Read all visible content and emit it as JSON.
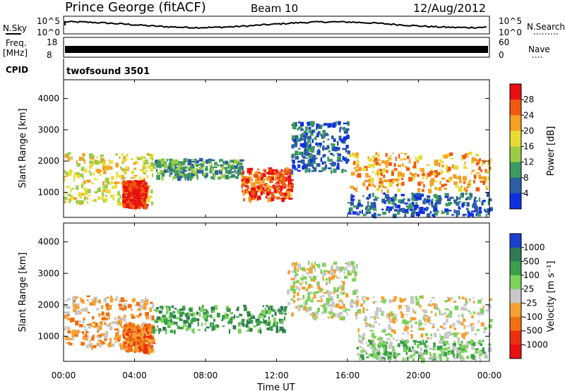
{
  "header": {
    "station": "Prince George (fitACF)",
    "beam": "Beam 10",
    "date": "12/Aug/2012"
  },
  "top_panels": {
    "nsky_label": "N.Sky",
    "nsky_ticks": [
      "10^5",
      "10^0"
    ],
    "nsearch_label": "N.Search",
    "nsearch_ticks": [
      "10^5",
      "10^0"
    ],
    "freq_label": "Freq.",
    "freq_unit": "[MHz]",
    "freq_ticks": [
      "18",
      "8"
    ],
    "nave_label": "Nave",
    "nave_ticks": [
      "60",
      "0"
    ],
    "cpid_label": "CPID",
    "cpid_value": "twofsound 3501"
  },
  "chart_data": [
    {
      "type": "heatmap",
      "name": "power",
      "ylabel": "Slant Range [km]",
      "yticks": [
        "4000",
        "3000",
        "2000",
        "1000"
      ],
      "ylim": [
        200,
        4600
      ],
      "xlim": [
        0,
        24
      ],
      "colorbar": {
        "label": "Power [dB]",
        "ticks": [
          "28",
          "24",
          "20",
          "16",
          "12",
          "8",
          "4"
        ],
        "colors": [
          "#e81010",
          "#f05a10",
          "#f5a022",
          "#e8dc34",
          "#9ccc45",
          "#3c9a60",
          "#2d5e9f",
          "#1030e0"
        ]
      },
      "bands": [
        {
          "t0": 0.0,
          "t1": 5.0,
          "r0": 700,
          "r1": 2300,
          "level": 3
        },
        {
          "t0": 3.3,
          "t1": 4.6,
          "r0": 550,
          "r1": 1400,
          "level": 0
        },
        {
          "t0": 5.0,
          "t1": 10.0,
          "r0": 1500,
          "r1": 2100,
          "level": 5
        },
        {
          "t0": 10.0,
          "t1": 12.8,
          "r0": 800,
          "r1": 1800,
          "level": 1
        },
        {
          "t0": 12.8,
          "t1": 16.0,
          "r0": 1700,
          "r1": 3300,
          "level": 6
        },
        {
          "t0": 16.0,
          "t1": 24.0,
          "r0": 1100,
          "r1": 2300,
          "level": 2
        },
        {
          "t0": 16.0,
          "t1": 24.0,
          "r0": 300,
          "r1": 1000,
          "level": 6
        }
      ]
    },
    {
      "type": "heatmap",
      "name": "velocity",
      "ylabel": "Slant Range [km]",
      "yticks": [
        "4000",
        "3000",
        "2000",
        "1000"
      ],
      "ylim": [
        200,
        4600
      ],
      "xlim": [
        0,
        24
      ],
      "colorbar": {
        "label": "Velocity [m s⁻¹]",
        "ticks": [
          "1000",
          "500",
          "100",
          "25",
          "-25",
          "-100",
          "-500",
          "-1000"
        ],
        "colors": [
          "#1a3ecf",
          "#2f7a55",
          "#3a9e4a",
          "#7cd35a",
          "#c8c8c8",
          "#f5a030",
          "#f07010",
          "#e83010",
          "#e81010"
        ]
      },
      "bands": [
        {
          "t0": 0.0,
          "t1": 5.0,
          "r0": 700,
          "r1": 2300,
          "level": 5
        },
        {
          "t0": 3.3,
          "t1": 5.0,
          "r0": 550,
          "r1": 1400,
          "level": 6
        },
        {
          "t0": 5.0,
          "t1": 12.5,
          "r0": 1200,
          "r1": 2000,
          "level": 2
        },
        {
          "t0": 12.5,
          "t1": 16.5,
          "r0": 1600,
          "r1": 3400,
          "level": 4
        },
        {
          "t0": 16.5,
          "t1": 24.0,
          "r0": 900,
          "r1": 2300,
          "level": 4
        },
        {
          "t0": 16.5,
          "t1": 24.0,
          "r0": 300,
          "r1": 900,
          "level": 3
        }
      ]
    }
  ],
  "xaxis": {
    "ticks": [
      "00:00",
      "04:00",
      "08:00",
      "12:00",
      "16:00",
      "20:00",
      "00:00"
    ],
    "label": "Time UT"
  }
}
